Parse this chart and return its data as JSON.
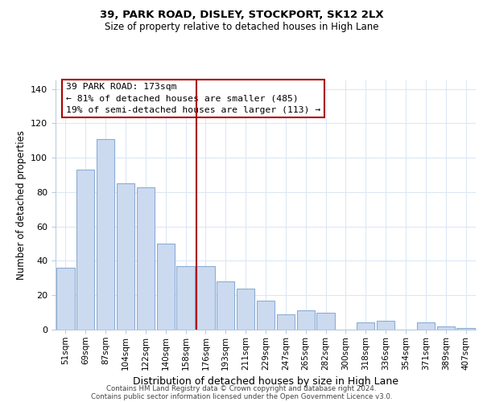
{
  "title": "39, PARK ROAD, DISLEY, STOCKPORT, SK12 2LX",
  "subtitle": "Size of property relative to detached houses in High Lane",
  "xlabel": "Distribution of detached houses by size in High Lane",
  "ylabel": "Number of detached properties",
  "bar_color": "#ccdaf0",
  "bar_edgecolor": "#8aadd4",
  "categories": [
    "51sqm",
    "69sqm",
    "87sqm",
    "104sqm",
    "122sqm",
    "140sqm",
    "158sqm",
    "176sqm",
    "193sqm",
    "211sqm",
    "229sqm",
    "247sqm",
    "265sqm",
    "282sqm",
    "300sqm",
    "318sqm",
    "336sqm",
    "354sqm",
    "371sqm",
    "389sqm",
    "407sqm"
  ],
  "values": [
    36,
    93,
    111,
    85,
    83,
    50,
    37,
    37,
    28,
    24,
    17,
    9,
    11,
    10,
    0,
    4,
    5,
    0,
    4,
    2,
    1
  ],
  "ylim": [
    0,
    145
  ],
  "yticks": [
    0,
    20,
    40,
    60,
    80,
    100,
    120,
    140
  ],
  "vline_index": 7,
  "vline_color": "#aa0000",
  "annotation_title": "39 PARK ROAD: 173sqm",
  "annotation_line1": "← 81% of detached houses are smaller (485)",
  "annotation_line2": "19% of semi-detached houses are larger (113) →",
  "footer_line1": "Contains HM Land Registry data © Crown copyright and database right 2024.",
  "footer_line2": "Contains public sector information licensed under the Open Government Licence v3.0.",
  "background_color": "#ffffff",
  "grid_color": "#dce8f5"
}
